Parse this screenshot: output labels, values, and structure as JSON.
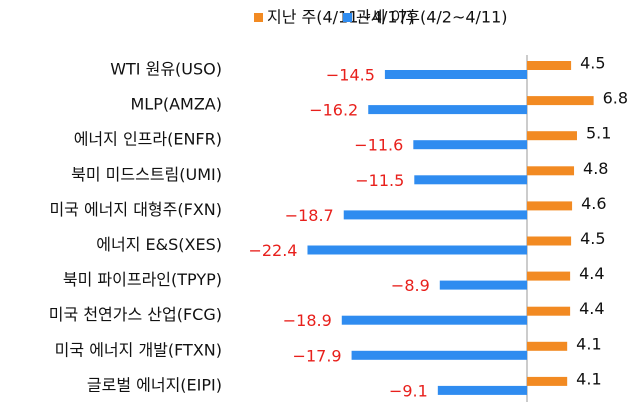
{
  "chart_data": {
    "type": "bar",
    "orientation": "horizontal",
    "categories": [
      "WTI 원유(USO)",
      "MLP(AMZA)",
      "에너지 인프라(ENFR)",
      "북미 미드스트림(UMI)",
      "미국 에너지 대형주(FXN)",
      "에너지 E&S(XES)",
      "북미 파이프라인(TPYP)",
      "미국 천연가스 산업(FCG)",
      "미국 에너지 개발(FTXN)",
      "글로벌 에너지(EIPI)"
    ],
    "series": [
      {
        "name": "지난 주(4/11~4/17)",
        "color": "#f28a22",
        "values": [
          4.5,
          6.8,
          5.1,
          4.8,
          4.6,
          4.5,
          4.4,
          4.4,
          4.1,
          4.1
        ]
      },
      {
        "name": "관세 이후(4/2~4/11)",
        "color": "#2f8cf0",
        "values": [
          -14.5,
          -16.2,
          -11.6,
          -11.5,
          -18.7,
          -22.4,
          -8.9,
          -18.9,
          -17.9,
          -9.1
        ],
        "value_labels": [
          "−14.5",
          "−16.2",
          "−11.6",
          "−11.5",
          "−18.7",
          "−22.4",
          "−8.9",
          "−18.9",
          "−17.9",
          "−9.1"
        ]
      }
    ]
  }
}
